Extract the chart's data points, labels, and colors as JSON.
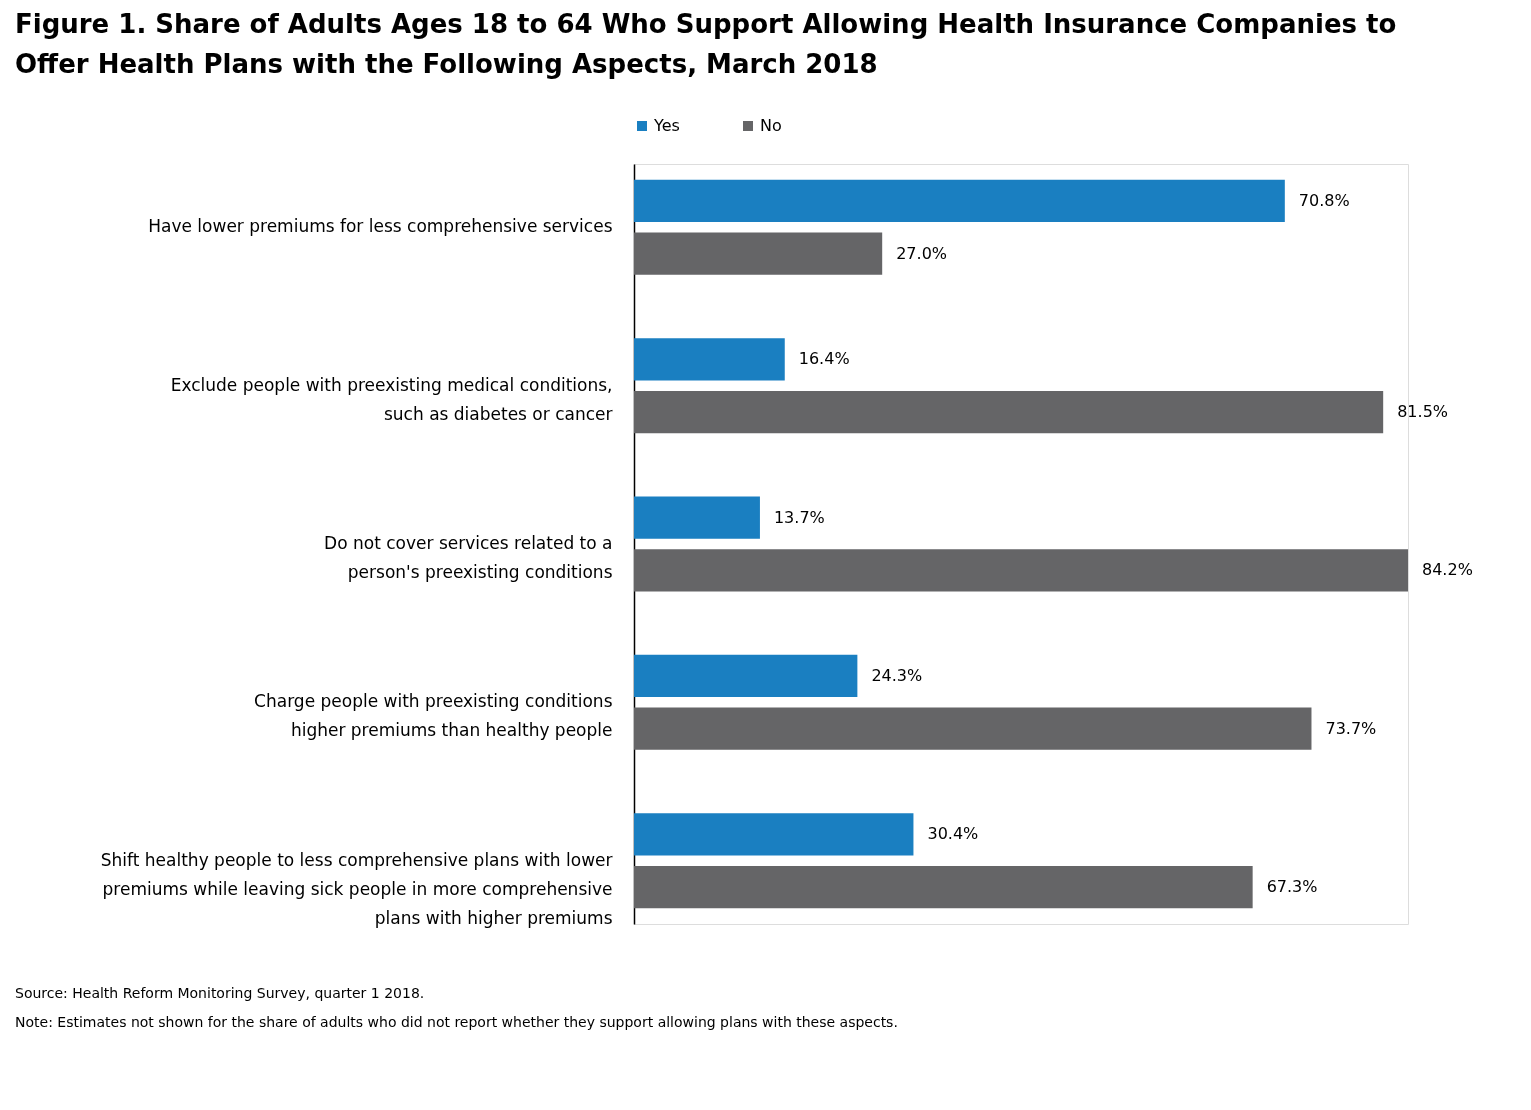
{
  "chart_data": {
    "type": "bar",
    "orientation": "horizontal",
    "title": "Figure 1. Share of Adults Ages 18 to 64 Who Support Allowing Health Insurance Companies to\nOffer Health Plans with the Following Aspects, March 2018",
    "categories": [
      "Have lower premiums for less comprehensive services",
      "Exclude people with preexisting medical conditions,\nsuch as diabetes or cancer",
      "Do not cover services related to a\nperson's preexisting conditions",
      "Charge people with preexisting conditions\nhigher premiums than healthy people",
      "Shift healthy people to less comprehensive plans with lower\npremiums while leaving sick people in more comprehensive\nplans with higher premiums"
    ],
    "series": [
      {
        "name": "Yes",
        "color": "#1a7fc1",
        "values": [
          70.8,
          16.4,
          13.7,
          24.3,
          30.4
        ],
        "value_labels": [
          "70.8%",
          "16.4%",
          "13.7%",
          "24.3%",
          "30.4%"
        ]
      },
      {
        "name": "No",
        "color": "#656567",
        "values": [
          27.0,
          81.5,
          84.2,
          73.7,
          67.3
        ],
        "value_labels": [
          "27.0%",
          "81.5%",
          "84.2%",
          "73.7%",
          "67.3%"
        ]
      }
    ],
    "tick_labels": "y",
    "legend": "top",
    "annotations": [
      "Source: Health Reform Monitoring Survey, quarter 1 2018.",
      "Note: Estimates not shown for the share of adults who did not report whether they support allowing plans with these aspects."
    ]
  }
}
